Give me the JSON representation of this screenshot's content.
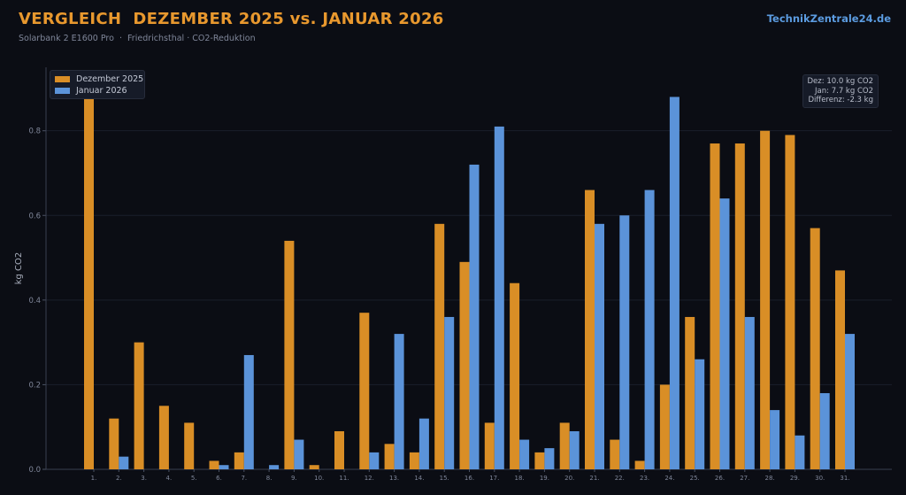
{
  "header": {
    "title": "VERGLEICH  DEZEMBER 2025 vs. JANUAR 2026",
    "subtitle": "Solarbank 2 E1600 Pro  ·  Friedrichsthal · CO2-Reduktion",
    "brand": "TechnikZentrale24.de"
  },
  "summary": {
    "line1": "Dez: 10.0 kg CO2",
    "line2": "Jan: 7.7 kg CO2",
    "line3": "Differenz: -2.3 kg"
  },
  "chart_data": {
    "type": "bar",
    "ylabel": "kg CO2",
    "ylim": [
      0,
      0.95
    ],
    "yticks": [
      "0.0",
      "0.2",
      "0.4",
      "0.6",
      "0.8"
    ],
    "legend_position": "top-left",
    "grid": true,
    "categories": [
      "1.",
      "2.",
      "3.",
      "4.",
      "5.",
      "6.",
      "7.",
      "8.",
      "9.",
      "10.",
      "11.",
      "12.",
      "13.",
      "14.",
      "15.",
      "16.",
      "17.",
      "18.",
      "19.",
      "20.",
      "21.",
      "22.",
      "23.",
      "24.",
      "25.",
      "26.",
      "27.",
      "28.",
      "29.",
      "30.",
      "31."
    ],
    "series": [
      {
        "name": "Dezember 2025",
        "color": "#d98e26",
        "values": [
          0.88,
          0.12,
          0.3,
          0.15,
          0.11,
          0.02,
          0.04,
          0.0,
          0.54,
          0.01,
          0.09,
          0.37,
          0.06,
          0.04,
          0.58,
          0.49,
          0.11,
          0.44,
          0.04,
          0.11,
          0.66,
          0.07,
          0.02,
          0.2,
          0.36,
          0.77,
          0.77,
          0.8,
          0.79,
          0.57,
          0.47
        ]
      },
      {
        "name": "Januar 2026",
        "color": "#5b93d9",
        "values": [
          0.0,
          0.03,
          0.0,
          0.0,
          0.0,
          0.01,
          0.27,
          0.01,
          0.07,
          0.0,
          0.0,
          0.04,
          0.32,
          0.12,
          0.36,
          0.72,
          0.81,
          0.07,
          0.05,
          0.09,
          0.58,
          0.6,
          0.66,
          0.88,
          0.26,
          0.64,
          0.36,
          0.14,
          0.08,
          0.18,
          0.32
        ]
      }
    ]
  }
}
